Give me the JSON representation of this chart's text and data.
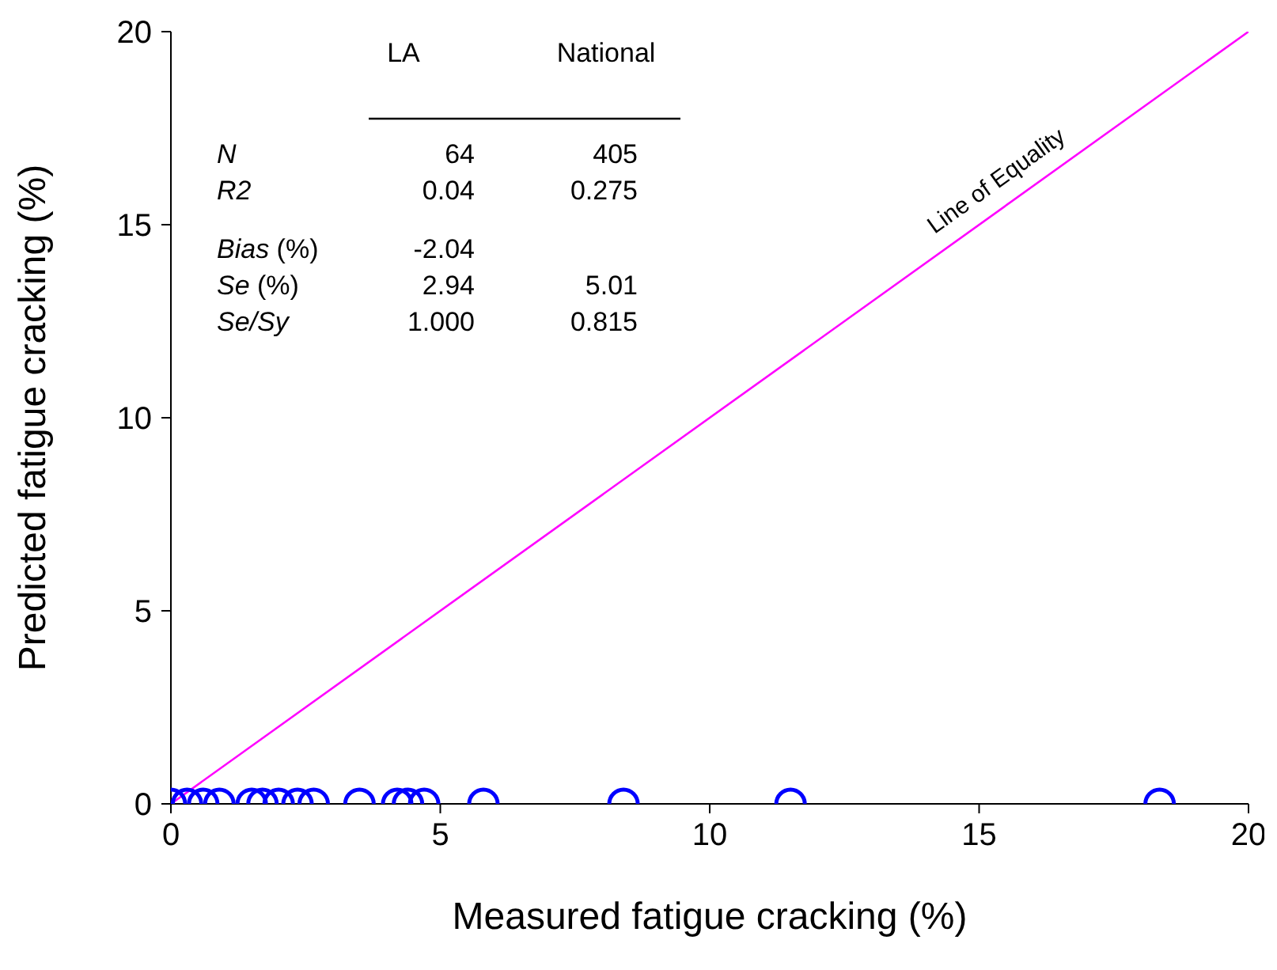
{
  "chart_data": {
    "type": "scatter",
    "xlabel": "Measured fatigue cracking (%)",
    "ylabel": "Predicted fatigue cracking (%)",
    "xlim": [
      0,
      20
    ],
    "ylim": [
      0,
      20
    ],
    "xticks": [
      0,
      5,
      10,
      15,
      20
    ],
    "yticks": [
      0,
      5,
      10,
      15,
      20
    ],
    "grid": false,
    "legend": false,
    "series": [
      {
        "color": "#0000ff",
        "marker": "circle",
        "x": [
          0,
          0.3,
          0.6,
          0.9,
          1.5,
          1.7,
          2.0,
          2.35,
          2.65,
          3.5,
          4.2,
          4.4,
          4.7,
          5.8,
          8.4,
          11.5,
          18.35
        ],
        "values": [
          0,
          0,
          0,
          0,
          0,
          0,
          0,
          0,
          0,
          0,
          0,
          0,
          0,
          0,
          0,
          0,
          0
        ]
      },
      {
        "type": "line",
        "name": "Line of Equality",
        "color": "#ff00ff",
        "marker": "none",
        "x": [
          0,
          20
        ],
        "values": [
          0,
          20
        ]
      }
    ],
    "annotations": [
      "LA",
      "National",
      "N",
      "64",
      "405",
      "R2",
      "0.04",
      "0.275",
      "Bias (%)",
      "-2.04",
      "Se (%)",
      "2.94",
      "5.01",
      "Se/Sy",
      "1.000",
      "0.815"
    ]
  }
}
